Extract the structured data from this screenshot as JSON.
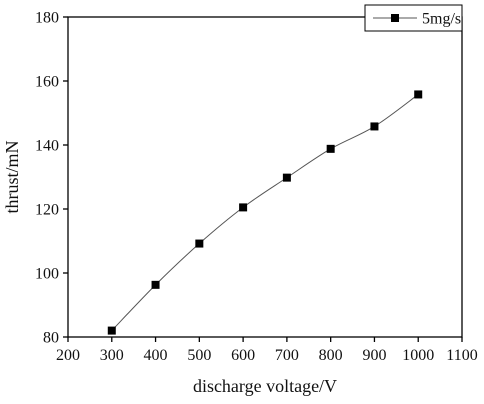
{
  "chart_data": {
    "type": "line",
    "xlabel": "discharge voltage/V",
    "ylabel": "thrust/mN",
    "xlim": [
      200,
      1100
    ],
    "ylim": [
      80,
      180
    ],
    "xticks": [
      200,
      300,
      400,
      500,
      600,
      700,
      800,
      900,
      1000,
      1100
    ],
    "yticks": [
      80,
      100,
      120,
      140,
      160,
      180
    ],
    "grid": false,
    "legend_position": "top-right",
    "series": [
      {
        "name": "5mg/s",
        "marker": "square",
        "color": "#000000",
        "line_color": "#555555",
        "x": [
          300,
          400,
          500,
          600,
          700,
          800,
          900,
          1000
        ],
        "y": [
          82,
          96.3,
          109.2,
          120.5,
          129.8,
          138.8,
          145.8,
          155.8
        ]
      }
    ]
  }
}
